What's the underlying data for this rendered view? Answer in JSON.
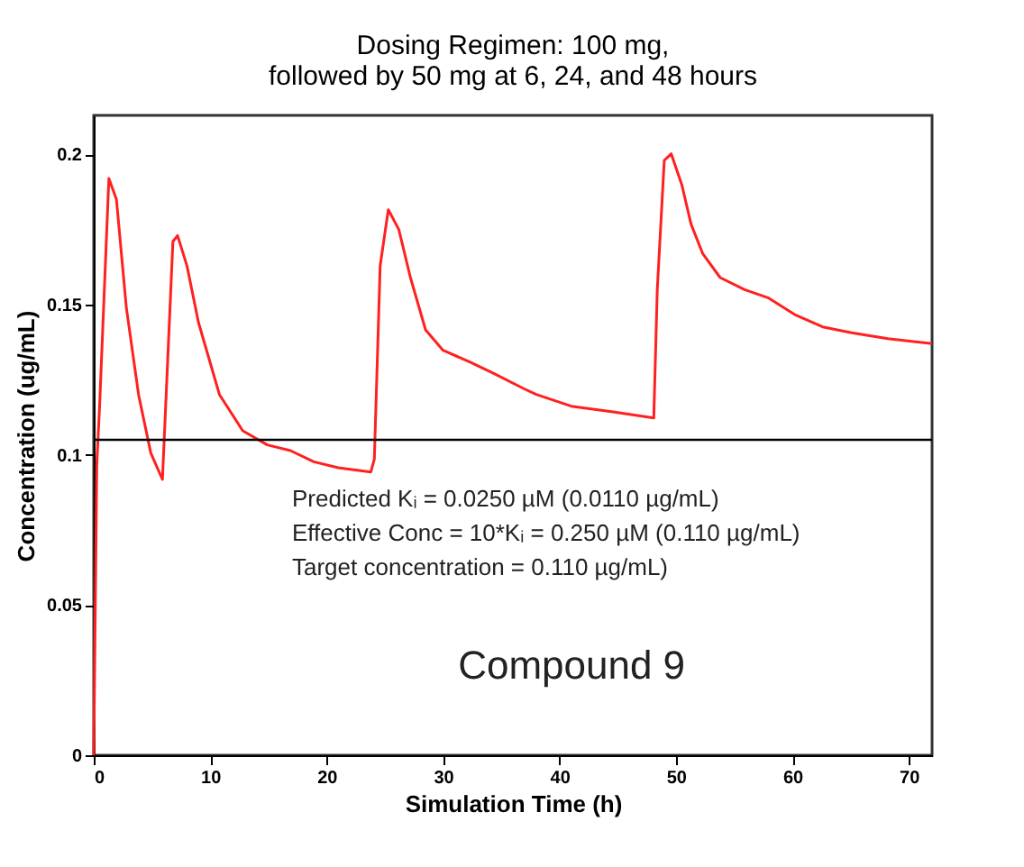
{
  "chart_data": {
    "type": "line",
    "title": [
      "Dosing Regimen: 100 mg,",
      "followed by 50 mg at 6, 24, and 48 hours"
    ],
    "xlabel": "Simulation Time (h)",
    "ylabel": "Concentration (ug/mL)",
    "x": [
      0,
      0.26,
      0.5,
      1.3,
      1.95,
      2.8,
      3.85,
      4.9,
      5.9,
      6.8,
      7.2,
      8.0,
      9.0,
      10.8,
      12.8,
      14.9,
      16.9,
      18.9,
      21.0,
      23.8,
      24.1,
      24.6,
      25.3,
      26.2,
      27.2,
      28.5,
      30.0,
      32.3,
      34.4,
      36.9,
      38.0,
      41.0,
      44.6,
      48.1,
      48.4,
      49.0,
      49.6,
      50.5,
      51.3,
      52.3,
      53.8,
      55.9,
      57.9,
      60.3,
      62.6,
      65.1,
      68.2,
      72.0
    ],
    "series": [
      {
        "color": "#ff2020",
        "values": [
          0,
          0.0967,
          0.116,
          0.192,
          0.185,
          0.149,
          0.12,
          0.1006,
          0.0918,
          0.171,
          0.173,
          0.163,
          0.144,
          0.12,
          0.108,
          0.1033,
          0.1014,
          0.0977,
          0.0957,
          0.0943,
          0.0986,
          0.163,
          0.1816,
          0.175,
          0.159,
          0.1416,
          0.1348,
          0.1309,
          0.127,
          0.1221,
          0.1201,
          0.1162,
          0.1143,
          0.1123,
          0.155,
          0.198,
          0.2002,
          0.19,
          0.1768,
          0.167,
          0.159,
          0.155,
          0.1523,
          0.1465,
          0.1426,
          0.1406,
          0.1387,
          0.137
        ]
      }
    ],
    "xlim": [
      0,
      72
    ],
    "ylim": [
      0,
      0.213
    ],
    "xticks": [
      0,
      10,
      20,
      30,
      40,
      50,
      60,
      70
    ],
    "yticks": [
      0,
      0.05,
      0.1,
      0.15,
      0.2
    ],
    "ref_lines": [
      {
        "axis": "y",
        "value": 0.105,
        "color": "#000000"
      }
    ],
    "annotations": [
      "Predicted Kᵢ = 0.0250 µM (0.0110 µg/mL)",
      "Effective Conc = 10*Kᵢ = 0.250 µM (0.110 µg/mL)",
      "Target concentration = 0.110 µg/mL)",
      "Compound 9"
    ],
    "grid": false,
    "legend": false,
    "marker": "none",
    "line_style": "solid"
  }
}
